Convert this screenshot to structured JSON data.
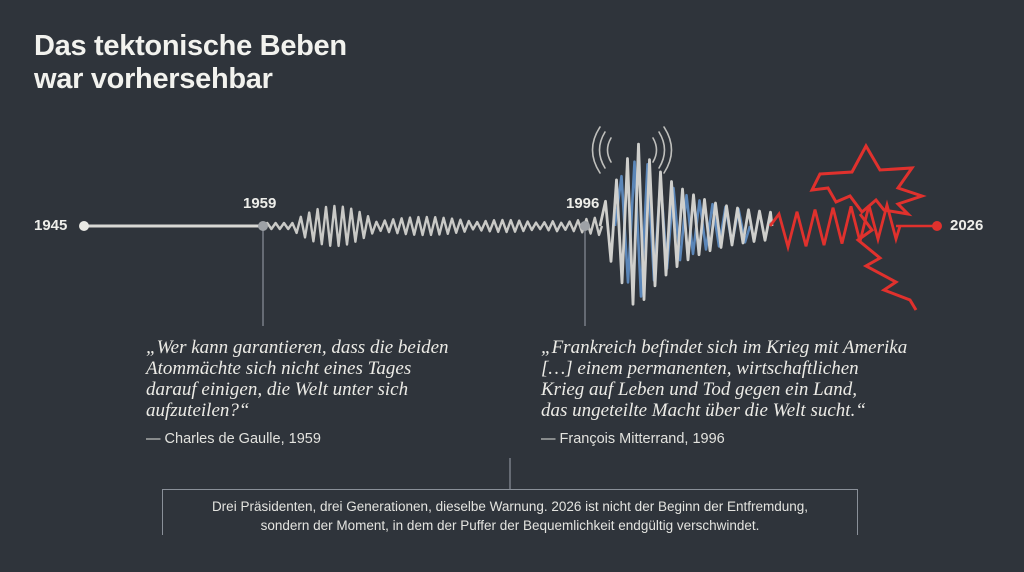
{
  "title": {
    "line1": "Das tektonische Beben",
    "line2": "war vorhersehbar"
  },
  "timeline": {
    "years": [
      "1945",
      "1959",
      "1996",
      "2026"
    ]
  },
  "quotes": [
    {
      "lines": [
        "„Wer kann garantieren, dass die beiden",
        "Atommächte sich nicht eines Tages",
        "darauf einigen, die Welt unter sich",
        "aufzuteilen?“"
      ],
      "attribution": "— Charles de Gaulle, 1959"
    },
    {
      "lines": [
        "„Frankreich befindet sich im Krieg mit Amerika",
        "[…] einem permanenten, wirtschaftlichen",
        "Krieg auf Leben und Tod gegen ein Land,",
        "das ungeteilte Macht über die Welt sucht.“"
      ],
      "attribution": "— François Mitterrand, 1996"
    }
  ],
  "summary": {
    "line1": "Drei Präsidenten, drei Generationen, dieselbe Warnung. 2026 ist nicht der Beginn der Entfremdung,",
    "line2": "sondern der Moment, in dem der Puffer der Bequemlichkeit endgültig verschwindet."
  },
  "colors": {
    "background": "#2f343b",
    "line": "#d8d8d4",
    "wave": "#c9c9c6",
    "blue": "#5b86b8",
    "red": "#e0312d"
  },
  "icons": [
    "seismic-signal-icon"
  ]
}
